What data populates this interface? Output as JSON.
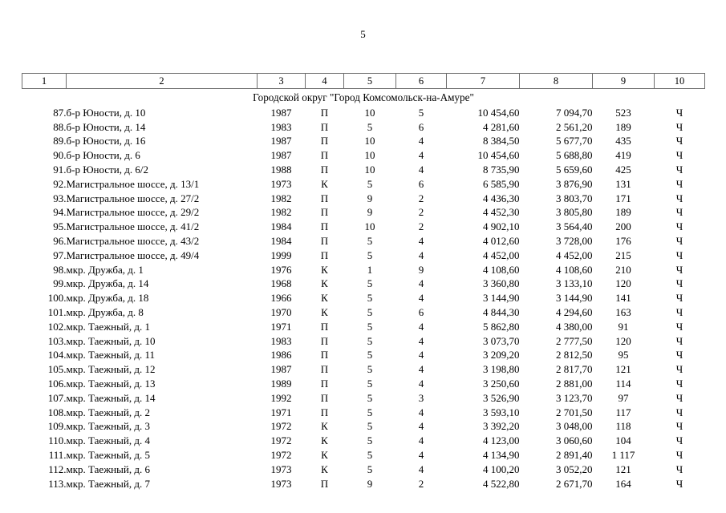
{
  "page": {
    "number": "5"
  },
  "table": {
    "column_headers": [
      "1",
      "2",
      "3",
      "4",
      "5",
      "6",
      "7",
      "8",
      "9",
      "10"
    ],
    "section_title": "Городской округ \"Город Комсомольск-на-Амуре\"",
    "rows": [
      [
        "87.",
        "б-р Юности, д. 10",
        "1987",
        "П",
        "10",
        "5",
        "10 454,60",
        "7 094,70",
        "523",
        "Ч"
      ],
      [
        "88.",
        "б-р Юности, д. 14",
        "1983",
        "П",
        "5",
        "6",
        "4 281,60",
        "2 561,20",
        "189",
        "Ч"
      ],
      [
        "89.",
        "б-р Юности, д. 16",
        "1987",
        "П",
        "10",
        "4",
        "8 384,50",
        "5 677,70",
        "435",
        "Ч"
      ],
      [
        "90.",
        "б-р Юности, д. 6",
        "1987",
        "П",
        "10",
        "4",
        "10 454,60",
        "5 688,80",
        "419",
        "Ч"
      ],
      [
        "91.",
        "б-р Юности, д. 6/2",
        "1988",
        "П",
        "10",
        "4",
        "8 735,90",
        "5 659,60",
        "425",
        "Ч"
      ],
      [
        "92.",
        "Магистральное шоссе, д. 13/1",
        "1973",
        "К",
        "5",
        "6",
        "6 585,90",
        "3 876,90",
        "131",
        "Ч"
      ],
      [
        "93.",
        "Магистральное шоссе, д. 27/2",
        "1982",
        "П",
        "9",
        "2",
        "4 436,30",
        "3 803,70",
        "171",
        "Ч"
      ],
      [
        "94.",
        "Магистральное шоссе, д. 29/2",
        "1982",
        "П",
        "9",
        "2",
        "4 452,30",
        "3 805,80",
        "189",
        "Ч"
      ],
      [
        "95.",
        "Магистральное шоссе, д. 41/2",
        "1984",
        "П",
        "10",
        "2",
        "4 902,10",
        "3 564,40",
        "200",
        "Ч"
      ],
      [
        "96.",
        "Магистральное шоссе, д. 43/2",
        "1984",
        "П",
        "5",
        "4",
        "4 012,60",
        "3 728,00",
        "176",
        "Ч"
      ],
      [
        "97.",
        "Магистральное шоссе, д. 49/4",
        "1999",
        "П",
        "5",
        "4",
        "4 452,00",
        "4 452,00",
        "215",
        "Ч"
      ],
      [
        "98.",
        "мкр. Дружба, д. 1",
        "1976",
        "К",
        "1",
        "9",
        "4 108,60",
        "4 108,60",
        "210",
        "Ч"
      ],
      [
        "99.",
        "мкр. Дружба, д. 14",
        "1968",
        "К",
        "5",
        "4",
        "3 360,80",
        "3 133,10",
        "120",
        "Ч"
      ],
      [
        "100.",
        "мкр. Дружба, д. 18",
        "1966",
        "К",
        "5",
        "4",
        "3 144,90",
        "3 144,90",
        "141",
        "Ч"
      ],
      [
        "101.",
        "мкр. Дружба, д. 8",
        "1970",
        "К",
        "5",
        "6",
        "4 844,30",
        "4 294,60",
        "163",
        "Ч"
      ],
      [
        "102.",
        "мкр. Таежный, д. 1",
        "1971",
        "П",
        "5",
        "4",
        "5 862,80",
        "4 380,00",
        "91",
        "Ч"
      ],
      [
        "103.",
        "мкр. Таежный, д. 10",
        "1983",
        "П",
        "5",
        "4",
        "3 073,70",
        "2 777,50",
        "120",
        "Ч"
      ],
      [
        "104.",
        "мкр. Таежный, д. 11",
        "1986",
        "П",
        "5",
        "4",
        "3 209,20",
        "2 812,50",
        "95",
        "Ч"
      ],
      [
        "105.",
        "мкр. Таежный, д. 12",
        "1987",
        "П",
        "5",
        "4",
        "3 198,80",
        "2 817,70",
        "121",
        "Ч"
      ],
      [
        "106.",
        "мкр. Таежный, д. 13",
        "1989",
        "П",
        "5",
        "4",
        "3 250,60",
        "2 881,00",
        "114",
        "Ч"
      ],
      [
        "107.",
        "мкр. Таежный, д. 14",
        "1992",
        "П",
        "5",
        "3",
        "3 526,90",
        "3 123,70",
        "97",
        "Ч"
      ],
      [
        "108.",
        "мкр. Таежный, д. 2",
        "1971",
        "П",
        "5",
        "4",
        "3 593,10",
        "2 701,50",
        "117",
        "Ч"
      ],
      [
        "109.",
        "мкр. Таежный, д. 3",
        "1972",
        "К",
        "5",
        "4",
        "3 392,20",
        "3 048,00",
        "118",
        "Ч"
      ],
      [
        "110.",
        "мкр. Таежный, д. 4",
        "1972",
        "К",
        "5",
        "4",
        "4 123,00",
        "3 060,60",
        "104",
        "Ч"
      ],
      [
        "111.",
        "мкр. Таежный, д. 5",
        "1972",
        "К",
        "5",
        "4",
        "4 134,90",
        "2 891,40",
        "1 117",
        "Ч"
      ],
      [
        "112.",
        "мкр. Таежный, д. 6",
        "1973",
        "К",
        "5",
        "4",
        "4 100,20",
        "3 052,20",
        "121",
        "Ч"
      ],
      [
        "113.",
        "мкр. Таежный, д. 7",
        "1973",
        "П",
        "9",
        "2",
        "4 522,80",
        "2 671,70",
        "164",
        "Ч"
      ]
    ]
  }
}
